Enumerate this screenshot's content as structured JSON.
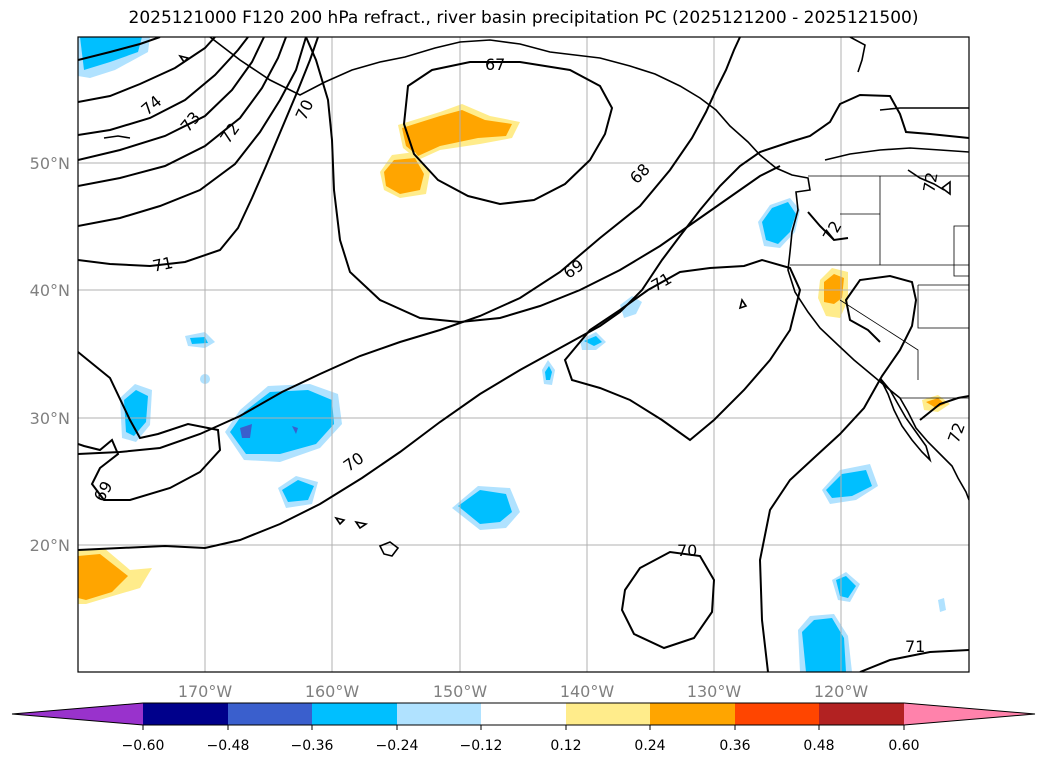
{
  "title": "2025121000 F120 200 hPa refract., river basin precipitation PC (2025121200 - 2025121500)",
  "longitude_labels": [
    "170°W",
    "160°W",
    "150°W",
    "140°W",
    "130°W",
    "120°W"
  ],
  "latitude_labels": [
    "50°N",
    "40°N",
    "30°N",
    "20°N"
  ],
  "colorbar": {
    "tick_labels": [
      "−0.60",
      "−0.48",
      "−0.36",
      "−0.24",
      "−0.12",
      "0.12",
      "0.24",
      "0.36",
      "0.48",
      "0.60"
    ],
    "colors": [
      "#9932cc",
      "#00008b",
      "#3a5fcd",
      "#00bfff",
      "#b0e2ff",
      "#ffffff",
      "#ffec8b",
      "#ffa500",
      "#ff4500",
      "#b22222",
      "#ff82ab"
    ]
  },
  "contours": [
    {
      "label": "74"
    },
    {
      "label": "73"
    },
    {
      "label": "72"
    },
    {
      "label": "70"
    },
    {
      "label": "67"
    },
    {
      "label": "68"
    },
    {
      "label": "69"
    },
    {
      "label": "71"
    },
    {
      "label": "71"
    },
    {
      "label": "70"
    },
    {
      "label": "69"
    },
    {
      "label": "70"
    },
    {
      "label": "71"
    },
    {
      "label": "72"
    },
    {
      "label": "72"
    },
    {
      "label": "72"
    }
  ]
}
